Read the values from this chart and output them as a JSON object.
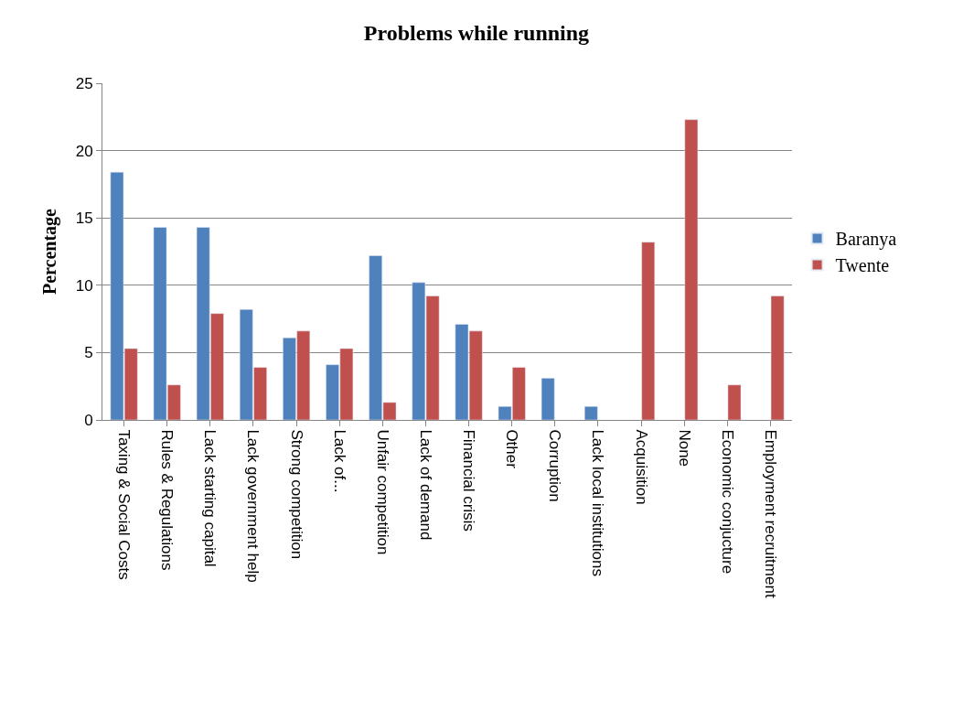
{
  "chart_data": {
    "type": "bar",
    "title": "Problems while running",
    "ylabel": "Percentage",
    "categories": [
      "Taxing & Social Costs",
      "Rules & Regulations",
      "Lack starting capital",
      "Lack government help",
      "Strong competition",
      "Lack of...",
      "Unfair competition",
      "Lack of demand",
      "Financial crisis",
      "Other",
      "Corruption",
      "Lack local institutions",
      "Acquisition",
      "None",
      "Economic conjucture",
      "Employment recruitment"
    ],
    "series": [
      {
        "name": "Baranya",
        "color": "#4f81bd",
        "values": [
          18.4,
          14.3,
          14.3,
          8.2,
          6.1,
          4.1,
          12.2,
          10.2,
          7.1,
          1.0,
          3.1,
          1.0,
          null,
          null,
          null,
          null
        ]
      },
      {
        "name": "Twente",
        "color": "#c0504d",
        "values": [
          5.3,
          2.6,
          7.9,
          3.9,
          6.6,
          5.3,
          1.3,
          9.2,
          6.6,
          3.9,
          null,
          null,
          13.2,
          22.3,
          2.6,
          9.2
        ]
      }
    ],
    "ylim": [
      0,
      25
    ],
    "yticks": [
      0,
      5,
      10,
      15,
      20,
      25
    ],
    "grid": "y",
    "legend": "right"
  }
}
